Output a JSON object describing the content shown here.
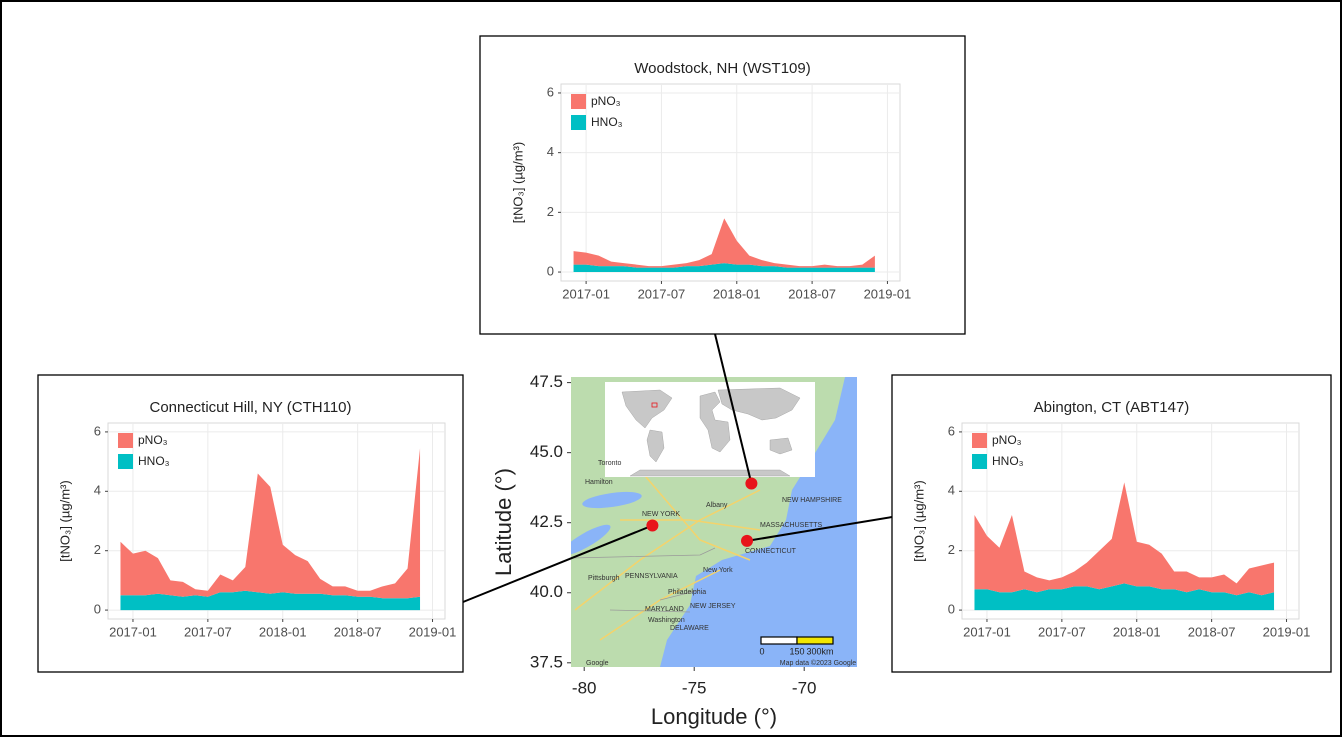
{
  "chart_data": [
    {
      "type": "area",
      "stacked": true,
      "title": "Woodstock, NH (WST109)",
      "ylabel": "[tNO₃] (µg/m³)",
      "x": [
        "2016-12",
        "2017-01",
        "2017-02",
        "2017-03",
        "2017-04",
        "2017-05",
        "2017-06",
        "2017-07",
        "2017-08",
        "2017-09",
        "2017-10",
        "2017-11",
        "2017-12",
        "2018-01",
        "2018-02",
        "2018-03",
        "2018-04",
        "2018-05",
        "2018-06",
        "2018-07",
        "2018-08",
        "2018-09",
        "2018-10",
        "2018-11",
        "2018-12"
      ],
      "series": [
        {
          "name": "pNO₃",
          "color": "#f8766d",
          "values": [
            0.45,
            0.4,
            0.35,
            0.15,
            0.1,
            0.1,
            0.05,
            0.05,
            0.1,
            0.1,
            0.2,
            0.35,
            1.5,
            0.8,
            0.3,
            0.2,
            0.1,
            0.1,
            0.05,
            0.05,
            0.1,
            0.05,
            0.05,
            0.1,
            0.4
          ]
        },
        {
          "name": "HNO₃",
          "color": "#00bfc4",
          "values": [
            0.25,
            0.25,
            0.2,
            0.2,
            0.2,
            0.15,
            0.15,
            0.15,
            0.15,
            0.2,
            0.2,
            0.25,
            0.3,
            0.25,
            0.25,
            0.2,
            0.2,
            0.15,
            0.15,
            0.15,
            0.15,
            0.15,
            0.15,
            0.15,
            0.15
          ]
        }
      ],
      "xlim": [
        "2016-11",
        "2019-02"
      ],
      "xticks": [
        "2017-01",
        "2017-07",
        "2018-01",
        "2018-07",
        "2019-01"
      ],
      "ylim": [
        -0.3,
        6.3
      ],
      "yticks": [
        0,
        2,
        4,
        6
      ],
      "grid": true,
      "legend": "top-left"
    },
    {
      "type": "area",
      "stacked": true,
      "title": "Connecticut Hill, NY (CTH110)",
      "ylabel": "[tNO₃] (µg/m³)",
      "x": [
        "2016-12",
        "2017-01",
        "2017-02",
        "2017-03",
        "2017-04",
        "2017-05",
        "2017-06",
        "2017-07",
        "2017-08",
        "2017-09",
        "2017-10",
        "2017-11",
        "2017-12",
        "2018-01",
        "2018-02",
        "2018-03",
        "2018-04",
        "2018-05",
        "2018-06",
        "2018-07",
        "2018-08",
        "2018-09",
        "2018-10",
        "2018-11",
        "2018-12"
      ],
      "series": [
        {
          "name": "pNO₃",
          "color": "#f8766d",
          "values": [
            1.8,
            1.4,
            1.5,
            1.2,
            0.5,
            0.5,
            0.2,
            0.2,
            0.6,
            0.4,
            0.8,
            4.0,
            3.6,
            1.6,
            1.3,
            1.1,
            0.5,
            0.3,
            0.3,
            0.2,
            0.2,
            0.4,
            0.5,
            1.0,
            5.0
          ]
        },
        {
          "name": "HNO₃",
          "color": "#00bfc4",
          "values": [
            0.5,
            0.5,
            0.5,
            0.55,
            0.5,
            0.45,
            0.5,
            0.45,
            0.6,
            0.6,
            0.65,
            0.6,
            0.55,
            0.6,
            0.55,
            0.55,
            0.55,
            0.5,
            0.5,
            0.45,
            0.45,
            0.4,
            0.4,
            0.4,
            0.45
          ]
        }
      ],
      "xlim": [
        "2016-11",
        "2019-02"
      ],
      "xticks": [
        "2017-01",
        "2017-07",
        "2018-01",
        "2018-07",
        "2019-01"
      ],
      "ylim": [
        -0.3,
        6.3
      ],
      "yticks": [
        0,
        2,
        4,
        6
      ],
      "grid": true,
      "legend": "top-left"
    },
    {
      "type": "area",
      "stacked": true,
      "title": "Abington, CT (ABT147)",
      "ylabel": "[tNO₃] (µg/m³)",
      "x": [
        "2016-12",
        "2017-01",
        "2017-02",
        "2017-03",
        "2017-04",
        "2017-05",
        "2017-06",
        "2017-07",
        "2017-08",
        "2017-09",
        "2017-10",
        "2017-11",
        "2017-12",
        "2018-01",
        "2018-02",
        "2018-03",
        "2018-04",
        "2018-05",
        "2018-06",
        "2018-07",
        "2018-08",
        "2018-09",
        "2018-10",
        "2018-11",
        "2018-12"
      ],
      "series": [
        {
          "name": "pNO₃",
          "color": "#f8766d",
          "values": [
            2.5,
            1.8,
            1.5,
            2.6,
            0.6,
            0.5,
            0.3,
            0.4,
            0.5,
            0.8,
            1.3,
            1.6,
            3.4,
            1.5,
            1.4,
            1.2,
            0.6,
            0.7,
            0.4,
            0.5,
            0.6,
            0.4,
            0.8,
            1.0,
            1.0
          ]
        },
        {
          "name": "HNO₃",
          "color": "#00bfc4",
          "values": [
            0.7,
            0.7,
            0.6,
            0.6,
            0.7,
            0.6,
            0.7,
            0.7,
            0.8,
            0.8,
            0.7,
            0.8,
            0.9,
            0.8,
            0.8,
            0.7,
            0.7,
            0.6,
            0.7,
            0.6,
            0.6,
            0.5,
            0.6,
            0.5,
            0.6
          ]
        }
      ],
      "xlim": [
        "2016-11",
        "2019-02"
      ],
      "xticks": [
        "2017-01",
        "2017-07",
        "2018-01",
        "2018-07",
        "2019-01"
      ],
      "ylim": [
        -0.3,
        6.3
      ],
      "yticks": [
        0,
        2,
        4,
        6
      ],
      "grid": true,
      "legend": "top-left"
    },
    {
      "type": "scatter",
      "xlabel": "Longitude (°)",
      "ylabel": "Latitude (°)",
      "x": [
        -72.4,
        -76.9,
        -72.6
      ],
      "y": [
        43.9,
        42.4,
        41.85
      ],
      "color": "#e8141b",
      "xlim": [
        -80.6,
        -67.6
      ],
      "xticks": [
        -80,
        -75,
        -70
      ],
      "ylim": [
        37.35,
        47.7
      ],
      "yticks": [
        37.5,
        {
          "value": 40,
          "label": "40.0"
        },
        42.5,
        {
          "value": 45,
          "label": "45.0"
        },
        47.5
      ],
      "annotations": [
        "Toronto",
        "Hamilton",
        "NEW YORK",
        "Albany",
        "PENNSYLVANIA",
        "Pittsburgh",
        "New York",
        "Philadelphia",
        "MARYLAND",
        "NEW JERSEY",
        "Washington",
        "DELAWARE",
        "MASSACHUSETTS",
        "CONNECTICUT",
        "NEW HAMPSHIRE",
        "Google",
        "Map data ©2023 Google"
      ],
      "scale_labels": [
        "0",
        "150",
        "300km"
      ]
    }
  ]
}
